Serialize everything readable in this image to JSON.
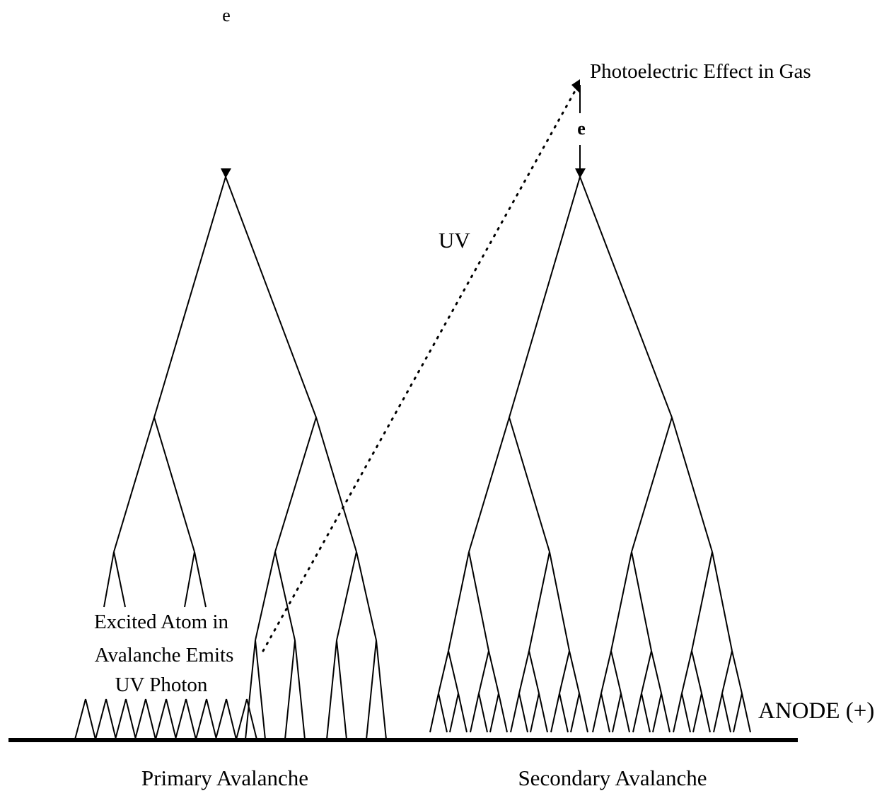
{
  "labels": {
    "primary_electron": "e",
    "photoelectric_effect": "Photoelectric Effect in Gas",
    "secondary_electron": "e",
    "uv": "UV",
    "excited_atom_line1": "Excited Atom in",
    "excited_atom_line2": "Avalanche Emits",
    "excited_atom_line3": "UV Photon",
    "anode": "ANODE (+)",
    "primary_avalanche": "Primary Avalanche",
    "secondary_avalanche": "Secondary Avalanche"
  },
  "colors": {
    "ink": "#000000",
    "background": "#ffffff"
  }
}
